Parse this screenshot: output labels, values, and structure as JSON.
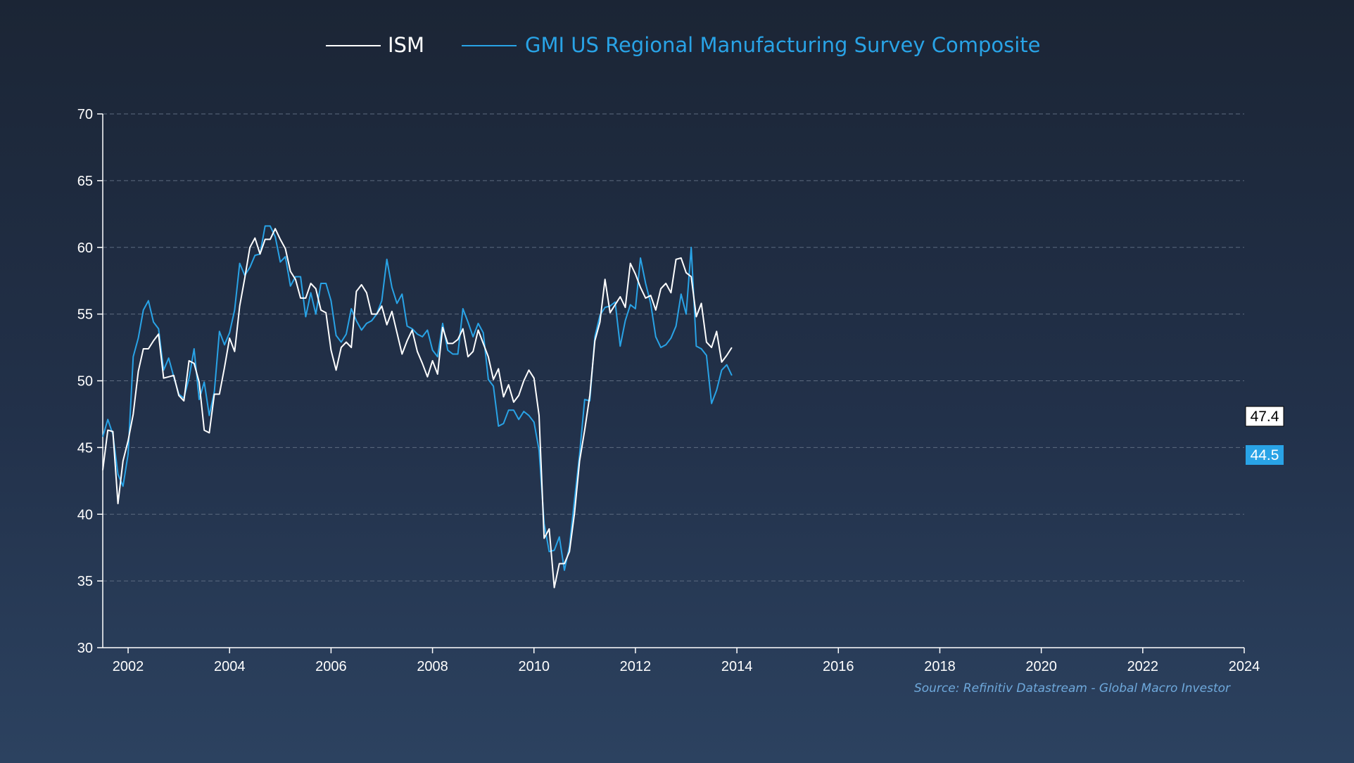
{
  "chart_data": {
    "type": "line",
    "legend_position": "top-center",
    "grid": true,
    "xlim": [
      2001.5,
      2024.0
    ],
    "ylim": [
      30,
      70
    ],
    "x_ticks": [
      2002,
      2004,
      2006,
      2008,
      2010,
      2012,
      2014,
      2016,
      2018,
      2020,
      2022,
      2024
    ],
    "y_ticks": [
      30,
      35,
      40,
      45,
      50,
      55,
      60,
      65,
      70
    ],
    "source": "Source: Refinitiv Datastream - Global Macro Investor",
    "series": [
      {
        "name": "ISM",
        "color": "#ffffff",
        "last_label": "47.4",
        "points": [
          [
            2001.5,
            43.3
          ],
          [
            2001.6,
            46.3
          ],
          [
            2001.7,
            46.2
          ],
          [
            2001.8,
            40.8
          ],
          [
            2001.9,
            44.0
          ],
          [
            2002.0,
            45.5
          ],
          [
            2002.1,
            47.5
          ],
          [
            2002.2,
            50.7
          ],
          [
            2002.3,
            52.4
          ],
          [
            2002.4,
            52.4
          ],
          [
            2002.5,
            53.0
          ],
          [
            2002.6,
            53.5
          ],
          [
            2002.7,
            50.2
          ],
          [
            2002.8,
            50.3
          ],
          [
            2002.9,
            50.4
          ],
          [
            2003.0,
            48.9
          ],
          [
            2003.1,
            48.5
          ],
          [
            2003.2,
            51.5
          ],
          [
            2003.3,
            51.3
          ],
          [
            2003.4,
            49.9
          ],
          [
            2003.5,
            46.3
          ],
          [
            2003.6,
            46.1
          ],
          [
            2003.7,
            49.0
          ],
          [
            2003.8,
            49.0
          ],
          [
            2003.9,
            51.0
          ],
          [
            2004.0,
            53.2
          ],
          [
            2004.1,
            52.2
          ],
          [
            2004.2,
            55.6
          ],
          [
            2004.3,
            57.7
          ],
          [
            2004.4,
            60.0
          ],
          [
            2004.5,
            60.7
          ],
          [
            2004.6,
            59.5
          ],
          [
            2004.7,
            60.6
          ],
          [
            2004.8,
            60.6
          ],
          [
            2004.9,
            61.4
          ],
          [
            2005.0,
            60.6
          ],
          [
            2005.1,
            59.9
          ],
          [
            2005.2,
            58.2
          ],
          [
            2005.3,
            57.6
          ],
          [
            2005.4,
            56.2
          ],
          [
            2005.5,
            56.2
          ],
          [
            2005.6,
            57.3
          ],
          [
            2005.7,
            56.9
          ],
          [
            2005.8,
            55.3
          ],
          [
            2005.9,
            55.1
          ],
          [
            2006.0,
            52.3
          ],
          [
            2006.1,
            50.8
          ],
          [
            2006.2,
            52.5
          ],
          [
            2006.3,
            52.9
          ],
          [
            2006.4,
            52.5
          ],
          [
            2006.5,
            56.7
          ],
          [
            2006.6,
            57.2
          ],
          [
            2006.7,
            56.6
          ],
          [
            2006.8,
            55.0
          ],
          [
            2006.9,
            55.0
          ],
          [
            2007.0,
            55.6
          ],
          [
            2007.1,
            54.2
          ],
          [
            2007.2,
            55.2
          ],
          [
            2007.3,
            53.6
          ],
          [
            2007.4,
            52.0
          ],
          [
            2007.5,
            53.0
          ],
          [
            2007.6,
            53.8
          ],
          [
            2007.7,
            52.2
          ],
          [
            2007.8,
            51.3
          ],
          [
            2007.9,
            50.3
          ],
          [
            2008.0,
            51.5
          ],
          [
            2008.1,
            50.5
          ],
          [
            2008.2,
            54.0
          ],
          [
            2008.3,
            52.8
          ],
          [
            2008.4,
            52.8
          ],
          [
            2008.5,
            53.1
          ],
          [
            2008.6,
            53.9
          ],
          [
            2008.7,
            51.8
          ],
          [
            2008.8,
            52.2
          ],
          [
            2008.9,
            53.8
          ],
          [
            2009.0,
            52.8
          ],
          [
            2009.1,
            51.8
          ],
          [
            2009.2,
            50.1
          ],
          [
            2009.3,
            50.9
          ],
          [
            2009.4,
            48.8
          ],
          [
            2009.5,
            49.7
          ],
          [
            2009.6,
            48.4
          ],
          [
            2009.7,
            48.9
          ],
          [
            2009.8,
            50.0
          ],
          [
            2009.9,
            50.8
          ],
          [
            2010.0,
            50.2
          ],
          [
            2010.1,
            47.4
          ],
          [
            2010.2,
            38.2
          ],
          [
            2010.3,
            38.9
          ],
          [
            2010.4,
            34.5
          ],
          [
            2010.5,
            36.3
          ],
          [
            2010.6,
            36.3
          ],
          [
            2010.7,
            37.2
          ],
          [
            2010.8,
            40.1
          ],
          [
            2010.9,
            44.0
          ],
          [
            2011.0,
            46.3
          ],
          [
            2011.1,
            48.9
          ],
          [
            2011.2,
            53.0
          ],
          [
            2011.3,
            54.4
          ],
          [
            2011.4,
            57.6
          ],
          [
            2011.5,
            55.1
          ],
          [
            2011.6,
            55.7
          ],
          [
            2011.7,
            56.3
          ],
          [
            2011.8,
            55.5
          ],
          [
            2011.9,
            58.8
          ],
          [
            2012.0,
            58.0
          ],
          [
            2012.1,
            57.0
          ],
          [
            2012.2,
            56.2
          ],
          [
            2012.3,
            56.4
          ],
          [
            2012.4,
            55.3
          ],
          [
            2012.5,
            56.9
          ],
          [
            2012.6,
            57.3
          ],
          [
            2012.7,
            56.6
          ],
          [
            2012.8,
            59.1
          ],
          [
            2012.9,
            59.2
          ],
          [
            2013.0,
            58.1
          ],
          [
            2013.1,
            57.8
          ],
          [
            2013.2,
            54.8
          ],
          [
            2013.3,
            55.8
          ],
          [
            2013.4,
            52.9
          ],
          [
            2013.5,
            52.5
          ],
          [
            2013.6,
            53.7
          ],
          [
            2013.7,
            51.4
          ],
          [
            2013.8,
            51.9
          ],
          [
            2013.9,
            52.5
          ]
        ]
      },
      {
        "name": "GMI US Regional Manufacturing Survey Composite",
        "color": "#29a3e6",
        "last_label": "44.5",
        "points": [
          [
            2001.5,
            45.8
          ],
          [
            2001.6,
            47.1
          ],
          [
            2001.7,
            46.0
          ],
          [
            2001.8,
            43.0
          ],
          [
            2001.9,
            42.1
          ],
          [
            2002.0,
            44.5
          ],
          [
            2002.1,
            51.8
          ],
          [
            2002.2,
            53.2
          ],
          [
            2002.3,
            55.3
          ],
          [
            2002.4,
            56.0
          ],
          [
            2002.5,
            54.4
          ],
          [
            2002.6,
            53.9
          ],
          [
            2002.7,
            50.8
          ],
          [
            2002.8,
            51.7
          ],
          [
            2002.9,
            50.3
          ],
          [
            2003.0,
            49.0
          ],
          [
            2003.1,
            48.7
          ],
          [
            2003.2,
            50.2
          ],
          [
            2003.3,
            52.4
          ],
          [
            2003.4,
            48.6
          ],
          [
            2003.5,
            49.9
          ],
          [
            2003.6,
            47.4
          ],
          [
            2003.7,
            49.2
          ],
          [
            2003.8,
            53.7
          ],
          [
            2003.9,
            52.7
          ],
          [
            2004.0,
            53.6
          ],
          [
            2004.1,
            55.3
          ],
          [
            2004.2,
            58.8
          ],
          [
            2004.3,
            57.9
          ],
          [
            2004.4,
            58.5
          ],
          [
            2004.5,
            59.4
          ],
          [
            2004.6,
            59.5
          ],
          [
            2004.7,
            61.6
          ],
          [
            2004.8,
            61.6
          ],
          [
            2004.9,
            60.8
          ],
          [
            2005.0,
            58.9
          ],
          [
            2005.1,
            59.3
          ],
          [
            2005.2,
            57.1
          ],
          [
            2005.3,
            57.8
          ],
          [
            2005.4,
            57.8
          ],
          [
            2005.5,
            54.8
          ],
          [
            2005.6,
            56.6
          ],
          [
            2005.7,
            55.0
          ],
          [
            2005.8,
            57.3
          ],
          [
            2005.9,
            57.3
          ],
          [
            2006.0,
            56.0
          ],
          [
            2006.1,
            53.4
          ],
          [
            2006.2,
            52.9
          ],
          [
            2006.3,
            53.5
          ],
          [
            2006.4,
            55.4
          ],
          [
            2006.5,
            54.5
          ],
          [
            2006.6,
            53.8
          ],
          [
            2006.7,
            54.3
          ],
          [
            2006.8,
            54.5
          ],
          [
            2006.9,
            55.0
          ],
          [
            2007.0,
            56.0
          ],
          [
            2007.1,
            59.1
          ],
          [
            2007.2,
            57.0
          ],
          [
            2007.3,
            55.8
          ],
          [
            2007.4,
            56.5
          ],
          [
            2007.5,
            54.1
          ],
          [
            2007.6,
            53.9
          ],
          [
            2007.7,
            53.5
          ],
          [
            2007.8,
            53.3
          ],
          [
            2007.9,
            53.8
          ],
          [
            2008.0,
            52.3
          ],
          [
            2008.1,
            51.8
          ],
          [
            2008.2,
            54.3
          ],
          [
            2008.3,
            52.3
          ],
          [
            2008.4,
            52.0
          ],
          [
            2008.5,
            52.0
          ],
          [
            2008.6,
            55.4
          ],
          [
            2008.7,
            54.4
          ],
          [
            2008.8,
            53.3
          ],
          [
            2008.9,
            54.3
          ],
          [
            2009.0,
            53.6
          ],
          [
            2009.1,
            50.1
          ],
          [
            2009.2,
            49.6
          ],
          [
            2009.3,
            46.6
          ],
          [
            2009.4,
            46.8
          ],
          [
            2009.5,
            47.8
          ],
          [
            2009.6,
            47.8
          ],
          [
            2009.7,
            47.1
          ],
          [
            2009.8,
            47.7
          ],
          [
            2009.9,
            47.4
          ],
          [
            2010.0,
            46.9
          ],
          [
            2010.1,
            44.8
          ],
          [
            2010.2,
            39.3
          ],
          [
            2010.3,
            37.2
          ],
          [
            2010.4,
            37.3
          ],
          [
            2010.5,
            38.3
          ],
          [
            2010.6,
            35.8
          ],
          [
            2010.7,
            37.6
          ],
          [
            2010.8,
            41.1
          ],
          [
            2010.9,
            44.5
          ],
          [
            2011.0,
            48.6
          ],
          [
            2011.1,
            48.5
          ],
          [
            2011.2,
            53.3
          ],
          [
            2011.3,
            54.9
          ],
          [
            2011.4,
            55.5
          ],
          [
            2011.5,
            55.6
          ],
          [
            2011.6,
            55.9
          ],
          [
            2011.7,
            52.6
          ],
          [
            2011.8,
            54.5
          ],
          [
            2011.9,
            55.7
          ],
          [
            2012.0,
            55.4
          ],
          [
            2012.1,
            59.2
          ],
          [
            2012.2,
            57.3
          ],
          [
            2012.3,
            55.8
          ],
          [
            2012.4,
            53.3
          ],
          [
            2012.5,
            52.5
          ],
          [
            2012.6,
            52.7
          ],
          [
            2012.7,
            53.2
          ],
          [
            2012.8,
            54.1
          ],
          [
            2012.9,
            56.5
          ],
          [
            2013.0,
            55.0
          ],
          [
            2013.1,
            60.0
          ],
          [
            2013.2,
            52.6
          ],
          [
            2013.3,
            52.4
          ],
          [
            2013.4,
            51.9
          ],
          [
            2013.5,
            48.3
          ],
          [
            2013.6,
            49.3
          ],
          [
            2013.7,
            50.8
          ],
          [
            2013.8,
            51.2
          ],
          [
            2013.9,
            50.4
          ]
        ]
      }
    ]
  }
}
